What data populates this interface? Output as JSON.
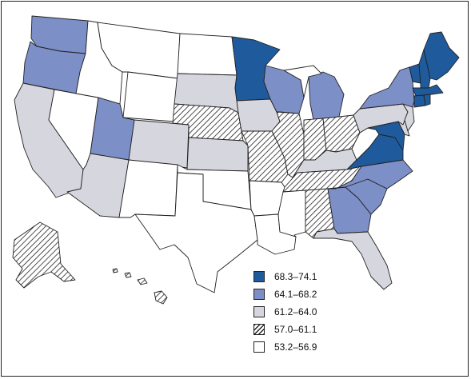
{
  "colors": {
    "c1": "#1f5b9c",
    "c2": "#7d8fc7",
    "c3": "#d6d6de",
    "c4": "hatched",
    "c5": "#ffffff"
  },
  "legend": [
    {
      "key": "c1",
      "label": "68.3–74.1"
    },
    {
      "key": "c2",
      "label": "64.1–68.2"
    },
    {
      "key": "c3",
      "label": "61.2–64.0"
    },
    {
      "key": "c4",
      "label": "57.0–61.1"
    },
    {
      "key": "c5",
      "label": "53.2–56.9"
    }
  ],
  "states": {
    "WA": "c2",
    "OR": "c2",
    "CA": "c3",
    "NV": "c5",
    "ID": "c5",
    "MT": "c5",
    "WY": "c5",
    "UT": "c2",
    "AZ": "c3",
    "CO": "c3",
    "NM": "c5",
    "ND": "c5",
    "SD": "c3",
    "NE": "c4",
    "KS": "c3",
    "OK": "c5",
    "TX": "c5",
    "MN": "c1",
    "IA": "c3",
    "MO": "c4",
    "AR": "c5",
    "LA": "c5",
    "WI": "c2",
    "IL": "c4",
    "MI": "c2",
    "IN": "c4",
    "OH": "c4",
    "KY": "c3",
    "TN": "c4",
    "MS": "c5",
    "AL": "c4",
    "GA": "c2",
    "FL": "c3",
    "SC": "c2",
    "NC": "c2",
    "VA": "c1",
    "WV": "c5",
    "MD": "c1",
    "DE": "c3",
    "PA": "c3",
    "NJ": "c3",
    "NY": "c2",
    "CT": "c1",
    "RI": "c1",
    "MA": "c1",
    "VT": "c1",
    "NH": "c1",
    "ME": "c1",
    "AK": "c4",
    "HI": "c4"
  }
}
